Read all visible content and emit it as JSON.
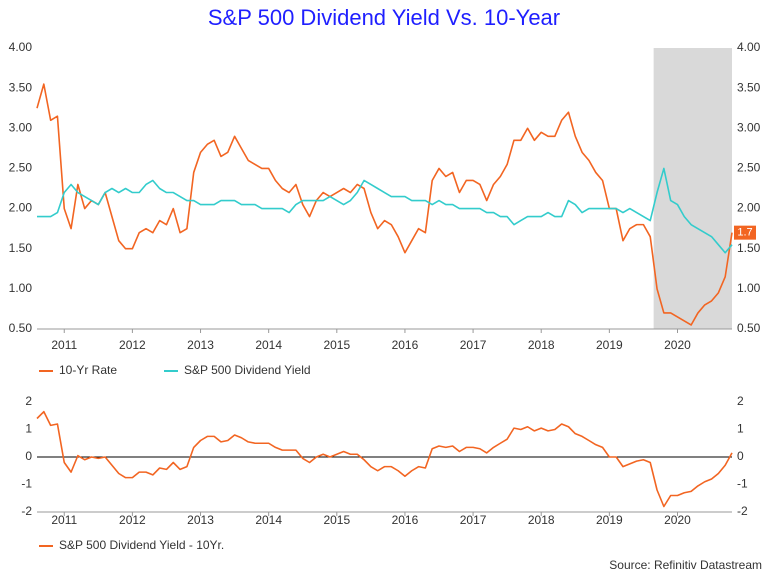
{
  "chart_data": [
    {
      "type": "line",
      "title": "S&P 500 Dividend Yield Vs. 10-Year",
      "x": [
        2010.6,
        2010.7,
        2010.8,
        2010.9,
        2011.0,
        2011.1,
        2011.2,
        2011.3,
        2011.4,
        2011.5,
        2011.6,
        2011.7,
        2011.8,
        2011.9,
        2012.0,
        2012.1,
        2012.2,
        2012.3,
        2012.4,
        2012.5,
        2012.6,
        2012.7,
        2012.8,
        2012.9,
        2013.0,
        2013.1,
        2013.2,
        2013.3,
        2013.4,
        2013.5,
        2013.6,
        2013.7,
        2013.8,
        2013.9,
        2014.0,
        2014.1,
        2014.2,
        2014.3,
        2014.4,
        2014.5,
        2014.6,
        2014.7,
        2014.8,
        2014.9,
        2015.0,
        2015.1,
        2015.2,
        2015.3,
        2015.4,
        2015.5,
        2015.6,
        2015.7,
        2015.8,
        2015.9,
        2016.0,
        2016.1,
        2016.2,
        2016.3,
        2016.4,
        2016.5,
        2016.6,
        2016.7,
        2016.8,
        2016.9,
        2017.0,
        2017.1,
        2017.2,
        2017.3,
        2017.4,
        2017.5,
        2017.6,
        2017.7,
        2017.8,
        2017.9,
        2018.0,
        2018.1,
        2018.2,
        2018.3,
        2018.4,
        2018.5,
        2018.6,
        2018.7,
        2018.8,
        2018.9,
        2019.0,
        2019.1,
        2019.2,
        2019.3,
        2019.4,
        2019.5,
        2019.6,
        2019.7,
        2019.8,
        2019.9,
        2020.0,
        2020.1,
        2020.2,
        2020.3,
        2020.4,
        2020.5,
        2020.6,
        2020.7,
        2020.8
      ],
      "series": [
        {
          "name": "10-Yr Rate",
          "color": "#f26522",
          "end_label": 1.7,
          "values": [
            3.25,
            3.55,
            3.1,
            3.15,
            2.0,
            1.75,
            2.3,
            2.0,
            2.1,
            2.05,
            2.2,
            1.9,
            1.6,
            1.5,
            1.5,
            1.7,
            1.75,
            1.7,
            1.85,
            1.8,
            2.0,
            1.7,
            1.75,
            2.45,
            2.7,
            2.8,
            2.85,
            2.65,
            2.7,
            2.9,
            2.75,
            2.6,
            2.55,
            2.5,
            2.5,
            2.35,
            2.25,
            2.2,
            2.3,
            2.05,
            1.9,
            2.1,
            2.2,
            2.15,
            2.2,
            2.25,
            2.2,
            2.3,
            2.25,
            1.95,
            1.75,
            1.85,
            1.8,
            1.65,
            1.45,
            1.6,
            1.75,
            1.7,
            2.35,
            2.5,
            2.4,
            2.45,
            2.2,
            2.35,
            2.35,
            2.3,
            2.1,
            2.3,
            2.4,
            2.55,
            2.85,
            2.85,
            3.0,
            2.85,
            2.95,
            2.9,
            2.9,
            3.1,
            3.2,
            2.9,
            2.7,
            2.6,
            2.45,
            2.35,
            2.0,
            2.0,
            1.6,
            1.75,
            1.8,
            1.8,
            1.65,
            1.0,
            0.7,
            0.7,
            0.65,
            0.6,
            0.55,
            0.7,
            0.8,
            0.85,
            0.95,
            1.15,
            1.7
          ]
        },
        {
          "name": "S&P 500 Dividend Yield",
          "color": "#33cccc",
          "values": [
            1.9,
            1.9,
            1.9,
            1.95,
            2.2,
            2.3,
            2.2,
            2.15,
            2.1,
            2.05,
            2.2,
            2.25,
            2.2,
            2.25,
            2.2,
            2.2,
            2.3,
            2.35,
            2.25,
            2.2,
            2.2,
            2.15,
            2.1,
            2.1,
            2.05,
            2.05,
            2.05,
            2.1,
            2.1,
            2.1,
            2.05,
            2.05,
            2.05,
            2.0,
            2.0,
            2.0,
            2.0,
            1.95,
            2.05,
            2.1,
            2.1,
            2.1,
            2.1,
            2.15,
            2.1,
            2.05,
            2.1,
            2.2,
            2.35,
            2.3,
            2.25,
            2.2,
            2.15,
            2.15,
            2.15,
            2.1,
            2.1,
            2.1,
            2.05,
            2.1,
            2.05,
            2.05,
            2.0,
            2.0,
            2.0,
            2.0,
            1.95,
            1.95,
            1.9,
            1.9,
            1.8,
            1.85,
            1.9,
            1.9,
            1.9,
            1.95,
            1.9,
            1.9,
            2.1,
            2.05,
            1.95,
            2.0,
            2.0,
            2.0,
            2.0,
            2.0,
            1.95,
            2.0,
            1.95,
            1.9,
            1.85,
            2.2,
            2.5,
            2.1,
            2.05,
            1.9,
            1.8,
            1.75,
            1.7,
            1.65,
            1.55,
            1.45,
            1.55
          ]
        }
      ],
      "xlim": [
        2010.6,
        2020.8
      ],
      "xticks": [
        2011,
        2012,
        2013,
        2014,
        2015,
        2016,
        2017,
        2018,
        2019,
        2020
      ],
      "ylim": [
        0.5,
        4.0
      ],
      "yticks": [
        {
          "value": 0.5,
          "label": "0.50"
        },
        {
          "value": 1.0,
          "label": "1.00"
        },
        {
          "value": 1.5,
          "label": "1.50"
        },
        {
          "value": 2.0,
          "label": "2.00"
        },
        {
          "value": 2.5,
          "label": "2.50"
        },
        {
          "value": 3.0,
          "label": "3.00"
        },
        {
          "value": 3.5,
          "label": "3.50"
        },
        {
          "value": 4.0,
          "label": "4.00"
        }
      ],
      "shaded_xrange": [
        2019.65,
        2020.8
      ],
      "shade_color": "#d9d9d9",
      "grid": false,
      "zero_line": false
    },
    {
      "type": "line",
      "x": [
        2010.6,
        2010.7,
        2010.8,
        2010.9,
        2011.0,
        2011.1,
        2011.2,
        2011.3,
        2011.4,
        2011.5,
        2011.6,
        2011.7,
        2011.8,
        2011.9,
        2012.0,
        2012.1,
        2012.2,
        2012.3,
        2012.4,
        2012.5,
        2012.6,
        2012.7,
        2012.8,
        2012.9,
        2013.0,
        2013.1,
        2013.2,
        2013.3,
        2013.4,
        2013.5,
        2013.6,
        2013.7,
        2013.8,
        2013.9,
        2014.0,
        2014.1,
        2014.2,
        2014.3,
        2014.4,
        2014.5,
        2014.6,
        2014.7,
        2014.8,
        2014.9,
        2015.0,
        2015.1,
        2015.2,
        2015.3,
        2015.4,
        2015.5,
        2015.6,
        2015.7,
        2015.8,
        2015.9,
        2016.0,
        2016.1,
        2016.2,
        2016.3,
        2016.4,
        2016.5,
        2016.6,
        2016.7,
        2016.8,
        2016.9,
        2017.0,
        2017.1,
        2017.2,
        2017.3,
        2017.4,
        2017.5,
        2017.6,
        2017.7,
        2017.8,
        2017.9,
        2018.0,
        2018.1,
        2018.2,
        2018.3,
        2018.4,
        2018.5,
        2018.6,
        2018.7,
        2018.8,
        2018.9,
        2019.0,
        2019.1,
        2019.2,
        2019.3,
        2019.4,
        2019.5,
        2019.6,
        2019.7,
        2019.8,
        2019.9,
        2020.0,
        2020.1,
        2020.2,
        2020.3,
        2020.4,
        2020.5,
        2020.6,
        2020.7,
        2020.8
      ],
      "series": [
        {
          "name": "S&P 500 Dividend Yield - 10Yr.",
          "color": "#f26522",
          "values": [
            1.4,
            1.65,
            1.15,
            1.2,
            -0.2,
            -0.55,
            0.05,
            -0.1,
            0.0,
            -0.05,
            0.0,
            -0.3,
            -0.6,
            -0.75,
            -0.75,
            -0.55,
            -0.55,
            -0.65,
            -0.4,
            -0.45,
            -0.2,
            -0.45,
            -0.35,
            0.35,
            0.6,
            0.75,
            0.75,
            0.55,
            0.6,
            0.8,
            0.7,
            0.55,
            0.5,
            0.5,
            0.5,
            0.35,
            0.25,
            0.25,
            0.25,
            -0.05,
            -0.2,
            0.0,
            0.1,
            0.0,
            0.1,
            0.2,
            0.1,
            0.1,
            -0.1,
            -0.35,
            -0.5,
            -0.35,
            -0.35,
            -0.5,
            -0.7,
            -0.5,
            -0.35,
            -0.4,
            0.3,
            0.4,
            0.35,
            0.4,
            0.2,
            0.35,
            0.35,
            0.3,
            0.15,
            0.35,
            0.5,
            0.65,
            1.05,
            1.0,
            1.1,
            0.95,
            1.05,
            0.95,
            1.0,
            1.2,
            1.1,
            0.85,
            0.75,
            0.6,
            0.45,
            0.35,
            0.0,
            0.0,
            -0.35,
            -0.25,
            -0.15,
            -0.1,
            -0.2,
            -1.2,
            -1.8,
            -1.4,
            -1.4,
            -1.3,
            -1.25,
            -1.05,
            -0.9,
            -0.8,
            -0.6,
            -0.3,
            0.15
          ]
        }
      ],
      "xlim": [
        2010.6,
        2020.8
      ],
      "xticks": [
        2011,
        2012,
        2013,
        2014,
        2015,
        2016,
        2017,
        2018,
        2019,
        2020
      ],
      "ylim": [
        -2,
        2
      ],
      "yticks": [
        -2,
        -1,
        0,
        1,
        2
      ],
      "grid": false,
      "zero_line": true,
      "source": "Source: Refinitiv Datastream"
    }
  ]
}
